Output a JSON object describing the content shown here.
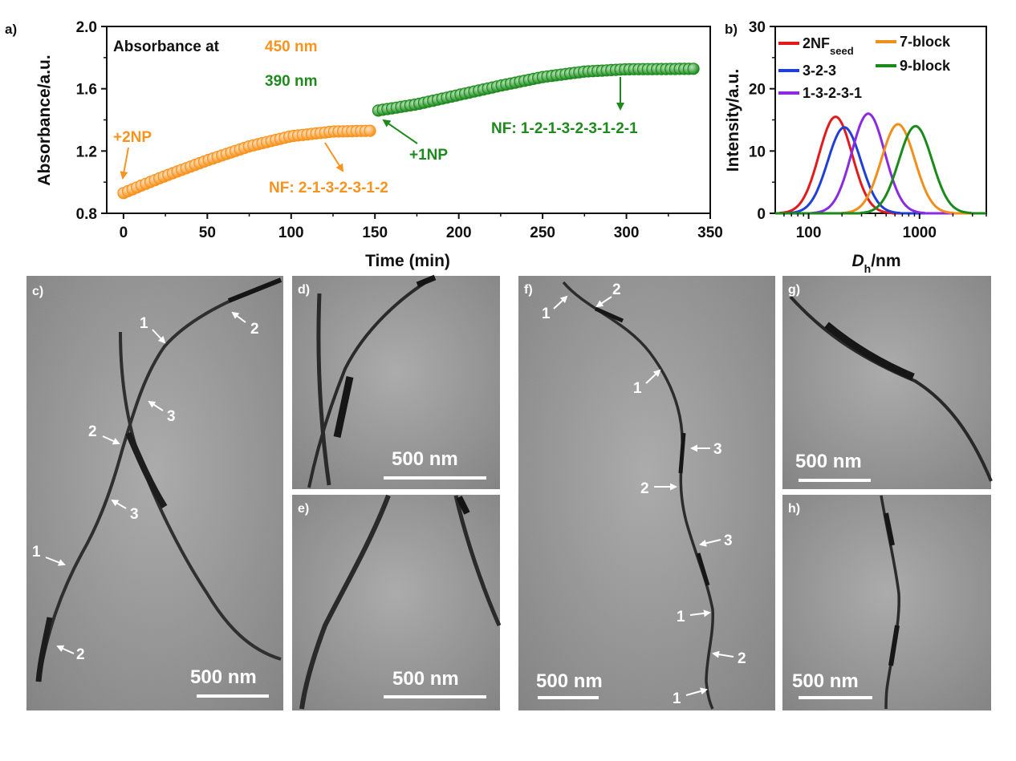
{
  "panels": {
    "a": "a)",
    "b": "b)",
    "c": "c)",
    "d": "d)",
    "e": "e)",
    "f": "f)",
    "g": "g)",
    "h": "h)"
  },
  "colors": {
    "orange": "#f7931e",
    "green": "#1e8a1e",
    "red": "#e31a1c",
    "blue": "#1f3fd6",
    "purple": "#8a2be2",
    "darkorange": "#f28e1c",
    "darkgreen": "#1a8a1a"
  },
  "chart_data": [
    {
      "type": "scatter",
      "id": "absorbance",
      "xlabel": "Time (min)",
      "ylabel": "Absorbance/a.u.",
      "xlim": [
        -10,
        350
      ],
      "ylim": [
        0.8,
        2.0
      ],
      "xticks": [
        "0",
        "50",
        "100",
        "150",
        "200",
        "250",
        "300",
        "350"
      ],
      "xtick_values": [
        0,
        50,
        100,
        150,
        200,
        250,
        300,
        350
      ],
      "yticks": [
        "0.8",
        "1.2",
        "1.6",
        "2.0"
      ],
      "ytick_values": [
        0.8,
        1.2,
        1.6,
        2.0
      ],
      "title_prefix": "Absorbance at",
      "wavelength_1": "450 nm",
      "wavelength_2": "390 nm",
      "series": [
        {
          "name": "450 nm",
          "color": "#f7931e",
          "x_start": 0,
          "x_end": 147,
          "count": 56,
          "anchors": [
            [
              0,
              0.93
            ],
            [
              10,
              0.975
            ],
            [
              25,
              1.04
            ],
            [
              50,
              1.14
            ],
            [
              75,
              1.23
            ],
            [
              100,
              1.295
            ],
            [
              125,
              1.325
            ],
            [
              147,
              1.33
            ]
          ]
        },
        {
          "name": "390 nm",
          "color": "#1e8a1e",
          "x_start": 152,
          "x_end": 340,
          "count": 70,
          "anchors": [
            [
              152,
              1.46
            ],
            [
              175,
              1.5
            ],
            [
              200,
              1.56
            ],
            [
              225,
              1.62
            ],
            [
              250,
              1.675
            ],
            [
              275,
              1.71
            ],
            [
              300,
              1.725
            ],
            [
              340,
              1.728
            ]
          ]
        }
      ],
      "annotations": {
        "add_2np": "+2NP",
        "nf_7": "NF: 2-1-3-2-3-1-2",
        "add_1np": "+1NP",
        "nf_9": "NF: 1-2-1-3-2-3-1-2-1"
      }
    },
    {
      "type": "line",
      "id": "dls",
      "xlabel": "D",
      "xlabel_sub": "h",
      "xlabel_suffix": "/nm",
      "ylabel": "Intensity/a.u.",
      "xscale": "log",
      "xlim": [
        50,
        4000
      ],
      "ylim": [
        0,
        30
      ],
      "xticks": [
        "100",
        "1000"
      ],
      "xtick_values": [
        100,
        1000
      ],
      "yticks": [
        "0",
        "10",
        "20",
        "30"
      ],
      "ytick_values": [
        0,
        10,
        20,
        30
      ],
      "series": [
        {
          "name": "2NF",
          "name_sub": "seed",
          "color": "#e31a1c",
          "peak": 175,
          "height": 15.5
        },
        {
          "name": "3-2-3",
          "color": "#1f3fd6",
          "peak": 210,
          "height": 13.8
        },
        {
          "name": "1-3-2-3-1",
          "color": "#8a2be2",
          "peak": 345,
          "height": 16.0
        },
        {
          "name": "7-block",
          "color": "#f28e1c",
          "peak": 640,
          "height": 14.3
        },
        {
          "name": "9-block",
          "color": "#1a8a1a",
          "peak": 920,
          "height": 14.0
        }
      ]
    }
  ],
  "micrographs": {
    "scale_c": "500 nm",
    "scale_d": "500 nm",
    "scale_e": "500 nm",
    "scale_f": "500 nm",
    "scale_g": "500 nm",
    "scale_h": "500 nm",
    "c_labels": [
      "1",
      "2",
      "3",
      "2",
      "3",
      "1",
      "2"
    ],
    "f_labels": [
      "1",
      "2",
      "1",
      "3",
      "2",
      "3",
      "1",
      "2",
      "1"
    ]
  }
}
